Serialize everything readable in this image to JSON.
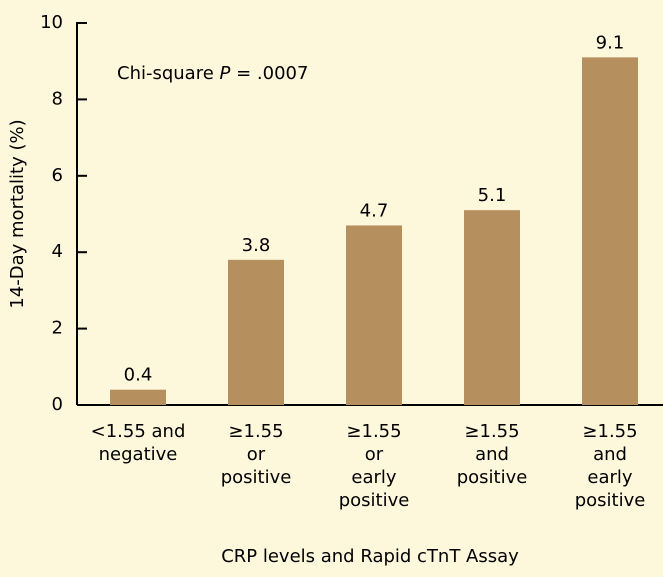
{
  "chart_data": {
    "type": "bar",
    "y_label": "14-Day mortality (%)",
    "x_label": "CRP levels and Rapid cTnT Assay",
    "annotation": [
      "Chi-square ",
      "P",
      " = .0007"
    ],
    "categories": [
      [
        "<1.55 and",
        "negative"
      ],
      [
        "≥1.55",
        "or",
        "positive"
      ],
      [
        "≥1.55",
        "or",
        "early",
        "positive"
      ],
      [
        "≥1.55",
        "and",
        "positive"
      ],
      [
        "≥1.55",
        "and",
        "early",
        "positive"
      ]
    ],
    "values": [
      0.4,
      3.8,
      4.7,
      5.1,
      9.1
    ],
    "color": "#b58f5e",
    "ylim": [
      0,
      10
    ],
    "yticks": [
      0,
      2,
      4,
      6,
      8,
      10
    ]
  }
}
